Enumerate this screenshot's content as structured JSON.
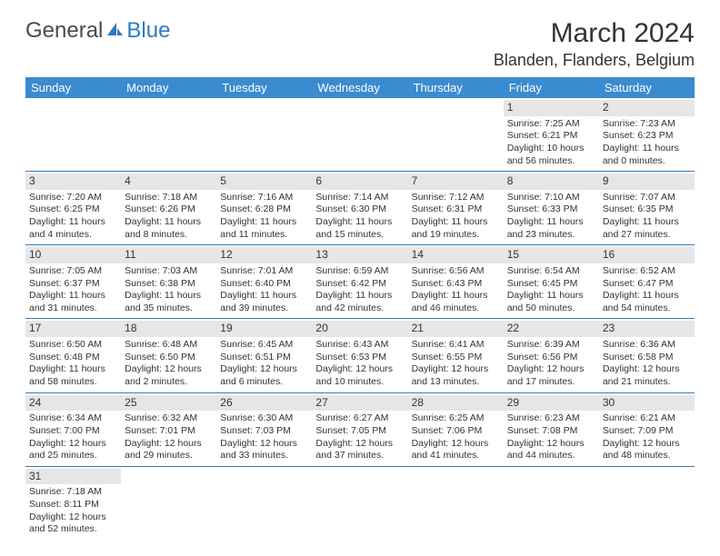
{
  "brand": {
    "part1": "General",
    "part2": "Blue"
  },
  "title": "March 2024",
  "location": "Blanden, Flanders, Belgium",
  "colors": {
    "header_bg": "#3b8bd0",
    "divider": "#2d7bc0",
    "daynum_bg": "#e6e6e6",
    "text": "#333333"
  },
  "day_headers": [
    "Sunday",
    "Monday",
    "Tuesday",
    "Wednesday",
    "Thursday",
    "Friday",
    "Saturday"
  ],
  "weeks": [
    [
      null,
      null,
      null,
      null,
      null,
      {
        "n": "1",
        "sr": "Sunrise: 7:25 AM",
        "ss": "Sunset: 6:21 PM",
        "d1": "Daylight: 10 hours",
        "d2": "and 56 minutes."
      },
      {
        "n": "2",
        "sr": "Sunrise: 7:23 AM",
        "ss": "Sunset: 6:23 PM",
        "d1": "Daylight: 11 hours",
        "d2": "and 0 minutes."
      }
    ],
    [
      {
        "n": "3",
        "sr": "Sunrise: 7:20 AM",
        "ss": "Sunset: 6:25 PM",
        "d1": "Daylight: 11 hours",
        "d2": "and 4 minutes."
      },
      {
        "n": "4",
        "sr": "Sunrise: 7:18 AM",
        "ss": "Sunset: 6:26 PM",
        "d1": "Daylight: 11 hours",
        "d2": "and 8 minutes."
      },
      {
        "n": "5",
        "sr": "Sunrise: 7:16 AM",
        "ss": "Sunset: 6:28 PM",
        "d1": "Daylight: 11 hours",
        "d2": "and 11 minutes."
      },
      {
        "n": "6",
        "sr": "Sunrise: 7:14 AM",
        "ss": "Sunset: 6:30 PM",
        "d1": "Daylight: 11 hours",
        "d2": "and 15 minutes."
      },
      {
        "n": "7",
        "sr": "Sunrise: 7:12 AM",
        "ss": "Sunset: 6:31 PM",
        "d1": "Daylight: 11 hours",
        "d2": "and 19 minutes."
      },
      {
        "n": "8",
        "sr": "Sunrise: 7:10 AM",
        "ss": "Sunset: 6:33 PM",
        "d1": "Daylight: 11 hours",
        "d2": "and 23 minutes."
      },
      {
        "n": "9",
        "sr": "Sunrise: 7:07 AM",
        "ss": "Sunset: 6:35 PM",
        "d1": "Daylight: 11 hours",
        "d2": "and 27 minutes."
      }
    ],
    [
      {
        "n": "10",
        "sr": "Sunrise: 7:05 AM",
        "ss": "Sunset: 6:37 PM",
        "d1": "Daylight: 11 hours",
        "d2": "and 31 minutes."
      },
      {
        "n": "11",
        "sr": "Sunrise: 7:03 AM",
        "ss": "Sunset: 6:38 PM",
        "d1": "Daylight: 11 hours",
        "d2": "and 35 minutes."
      },
      {
        "n": "12",
        "sr": "Sunrise: 7:01 AM",
        "ss": "Sunset: 6:40 PM",
        "d1": "Daylight: 11 hours",
        "d2": "and 39 minutes."
      },
      {
        "n": "13",
        "sr": "Sunrise: 6:59 AM",
        "ss": "Sunset: 6:42 PM",
        "d1": "Daylight: 11 hours",
        "d2": "and 42 minutes."
      },
      {
        "n": "14",
        "sr": "Sunrise: 6:56 AM",
        "ss": "Sunset: 6:43 PM",
        "d1": "Daylight: 11 hours",
        "d2": "and 46 minutes."
      },
      {
        "n": "15",
        "sr": "Sunrise: 6:54 AM",
        "ss": "Sunset: 6:45 PM",
        "d1": "Daylight: 11 hours",
        "d2": "and 50 minutes."
      },
      {
        "n": "16",
        "sr": "Sunrise: 6:52 AM",
        "ss": "Sunset: 6:47 PM",
        "d1": "Daylight: 11 hours",
        "d2": "and 54 minutes."
      }
    ],
    [
      {
        "n": "17",
        "sr": "Sunrise: 6:50 AM",
        "ss": "Sunset: 6:48 PM",
        "d1": "Daylight: 11 hours",
        "d2": "and 58 minutes."
      },
      {
        "n": "18",
        "sr": "Sunrise: 6:48 AM",
        "ss": "Sunset: 6:50 PM",
        "d1": "Daylight: 12 hours",
        "d2": "and 2 minutes."
      },
      {
        "n": "19",
        "sr": "Sunrise: 6:45 AM",
        "ss": "Sunset: 6:51 PM",
        "d1": "Daylight: 12 hours",
        "d2": "and 6 minutes."
      },
      {
        "n": "20",
        "sr": "Sunrise: 6:43 AM",
        "ss": "Sunset: 6:53 PM",
        "d1": "Daylight: 12 hours",
        "d2": "and 10 minutes."
      },
      {
        "n": "21",
        "sr": "Sunrise: 6:41 AM",
        "ss": "Sunset: 6:55 PM",
        "d1": "Daylight: 12 hours",
        "d2": "and 13 minutes."
      },
      {
        "n": "22",
        "sr": "Sunrise: 6:39 AM",
        "ss": "Sunset: 6:56 PM",
        "d1": "Daylight: 12 hours",
        "d2": "and 17 minutes."
      },
      {
        "n": "23",
        "sr": "Sunrise: 6:36 AM",
        "ss": "Sunset: 6:58 PM",
        "d1": "Daylight: 12 hours",
        "d2": "and 21 minutes."
      }
    ],
    [
      {
        "n": "24",
        "sr": "Sunrise: 6:34 AM",
        "ss": "Sunset: 7:00 PM",
        "d1": "Daylight: 12 hours",
        "d2": "and 25 minutes."
      },
      {
        "n": "25",
        "sr": "Sunrise: 6:32 AM",
        "ss": "Sunset: 7:01 PM",
        "d1": "Daylight: 12 hours",
        "d2": "and 29 minutes."
      },
      {
        "n": "26",
        "sr": "Sunrise: 6:30 AM",
        "ss": "Sunset: 7:03 PM",
        "d1": "Daylight: 12 hours",
        "d2": "and 33 minutes."
      },
      {
        "n": "27",
        "sr": "Sunrise: 6:27 AM",
        "ss": "Sunset: 7:05 PM",
        "d1": "Daylight: 12 hours",
        "d2": "and 37 minutes."
      },
      {
        "n": "28",
        "sr": "Sunrise: 6:25 AM",
        "ss": "Sunset: 7:06 PM",
        "d1": "Daylight: 12 hours",
        "d2": "and 41 minutes."
      },
      {
        "n": "29",
        "sr": "Sunrise: 6:23 AM",
        "ss": "Sunset: 7:08 PM",
        "d1": "Daylight: 12 hours",
        "d2": "and 44 minutes."
      },
      {
        "n": "30",
        "sr": "Sunrise: 6:21 AM",
        "ss": "Sunset: 7:09 PM",
        "d1": "Daylight: 12 hours",
        "d2": "and 48 minutes."
      }
    ],
    [
      {
        "n": "31",
        "sr": "Sunrise: 7:18 AM",
        "ss": "Sunset: 8:11 PM",
        "d1": "Daylight: 12 hours",
        "d2": "and 52 minutes."
      },
      null,
      null,
      null,
      null,
      null,
      null
    ]
  ]
}
